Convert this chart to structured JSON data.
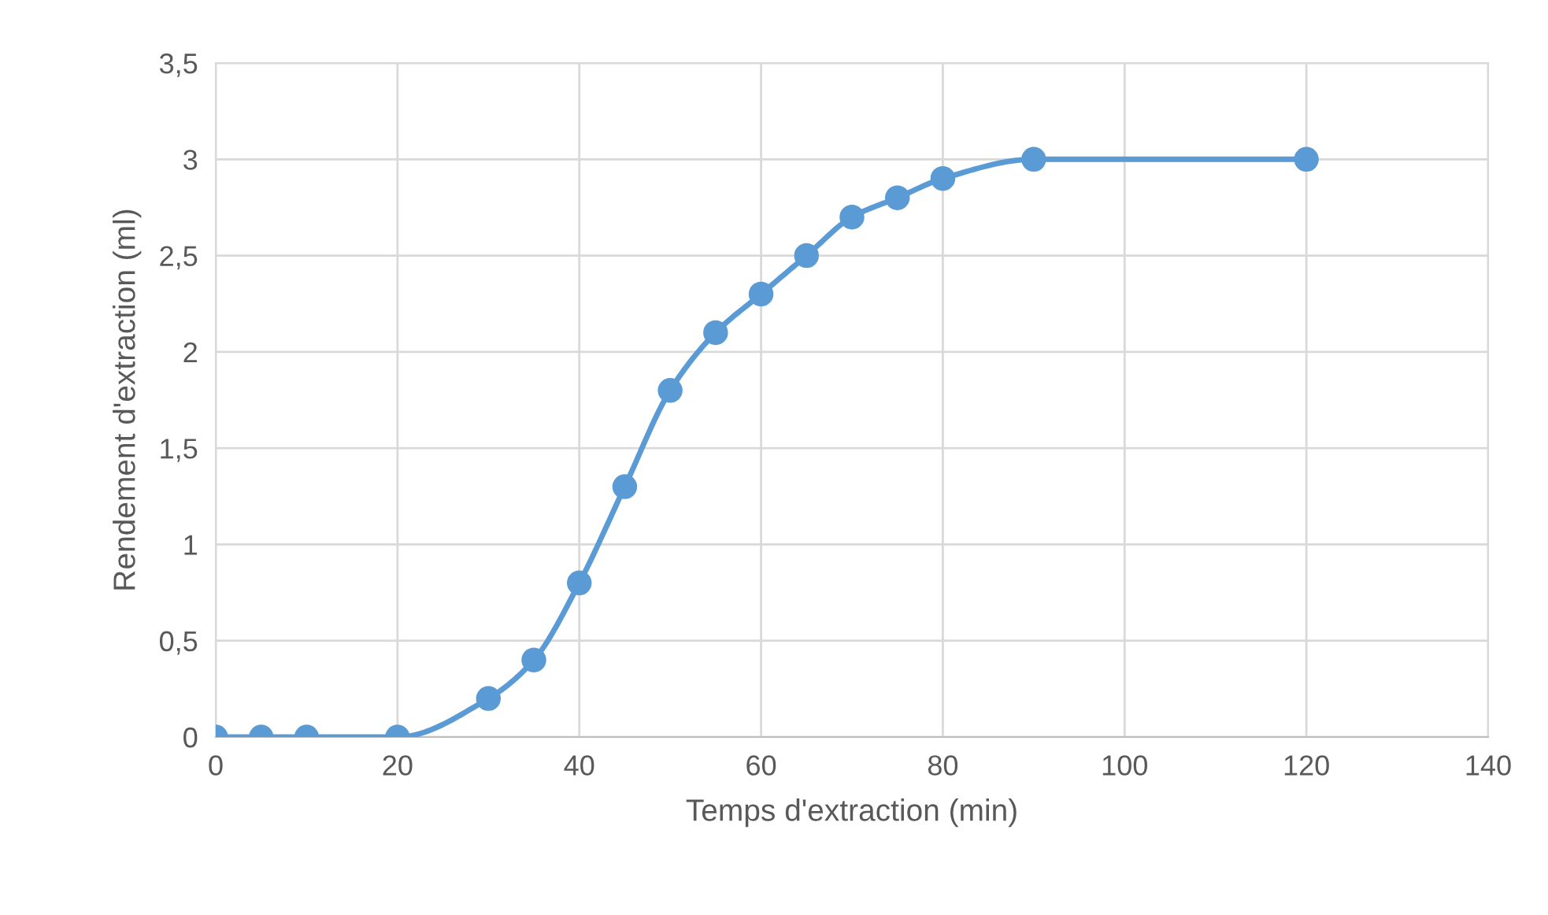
{
  "chart_data": {
    "type": "line",
    "xlabel": "Temps d'extraction (min)",
    "ylabel": "Rendement d'extraction (ml)",
    "x": [
      0,
      5,
      10,
      20,
      30,
      35,
      40,
      45,
      50,
      55,
      60,
      65,
      70,
      75,
      80,
      90,
      120
    ],
    "series": [
      {
        "color": "#5b9bd5",
        "values": [
          0,
          0,
          0,
          0,
          0.2,
          0.4,
          0.8,
          1.3,
          1.8,
          2.1,
          2.3,
          2.5,
          2.7,
          2.8,
          2.9,
          3,
          3
        ]
      }
    ],
    "xlim": [
      0,
      140
    ],
    "xticks": [
      0,
      20,
      40,
      60,
      80,
      100,
      120,
      140
    ],
    "ylim": [
      0,
      3.5
    ],
    "yticks": [
      0,
      {
        "value": 0.5,
        "label": "0,5"
      },
      1,
      {
        "value": 1.5,
        "label": "1,5"
      },
      2,
      {
        "value": 2.5,
        "label": "2,5"
      },
      3,
      {
        "value": 3.5,
        "label": "3,5"
      }
    ],
    "grid": true,
    "marker": "circle",
    "line_style": "solid"
  }
}
